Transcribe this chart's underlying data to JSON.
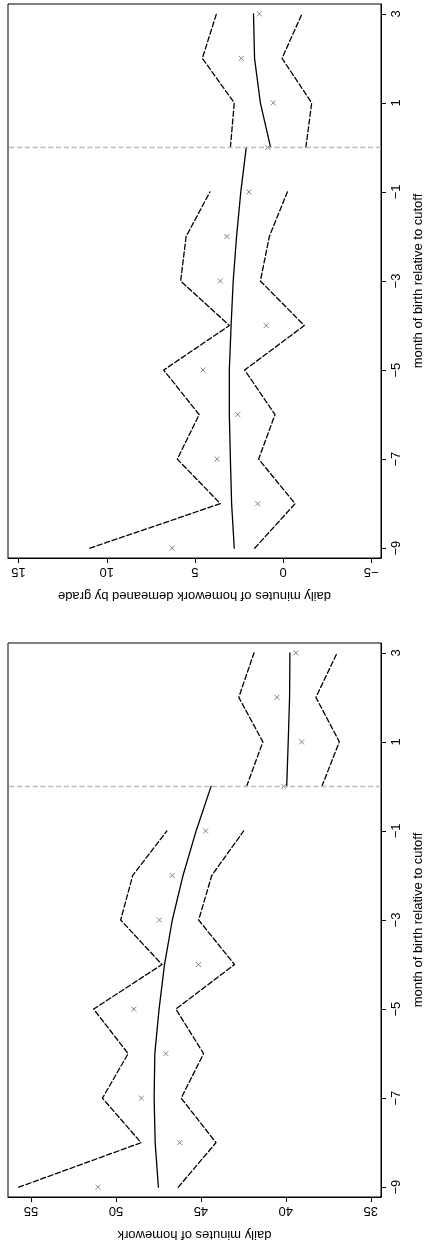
{
  "chart_data": [
    {
      "type": "line",
      "orientation": "horizontal",
      "ylabel": "month of birth relative to cutoff",
      "xlabel": "daily minutes of homework demeaned by grade",
      "ylim": [
        -9.22,
        3.22
      ],
      "xlim": [
        15.6,
        -5.55
      ],
      "yticks": [
        {
          "value": -9,
          "label": "−9"
        },
        {
          "value": -7,
          "label": "−7"
        },
        {
          "value": -5,
          "label": "−5"
        },
        {
          "value": -3,
          "label": "−3"
        },
        {
          "value": -1,
          "label": "−1"
        },
        {
          "value": 1,
          "label": "1"
        },
        {
          "value": 3,
          "label": "3"
        }
      ],
      "xticks": [
        {
          "value": -5,
          "label": "−5"
        },
        0,
        5,
        10,
        15
      ],
      "grid": false,
      "ref_lines": [
        {
          "axis": "y",
          "value": 0,
          "color": "#bbbbbb",
          "line_style": "dashed"
        }
      ],
      "series": [
        {
          "type": "scatter",
          "marker": "cross",
          "color": "#666666",
          "x": [
            -9,
            -8,
            -7,
            -6,
            -5,
            -4,
            -3,
            -2,
            -1,
            0,
            1,
            2,
            3
          ],
          "values": [
            6.29,
            1.44,
            3.75,
            2.57,
            4.54,
            0.96,
            3.56,
            3.19,
            1.94,
            0.87,
            0.56,
            2.37,
            1.35
          ]
        },
        {
          "line_style": "solid",
          "color": "#000000",
          "x": [
            -9,
            -8,
            -7,
            -6,
            -5,
            -4,
            -3,
            -2,
            -1,
            0
          ],
          "values": [
            2.77,
            2.92,
            2.99,
            3.05,
            3.05,
            2.95,
            2.83,
            2.64,
            2.4,
            2.09
          ]
        },
        {
          "line_style": "solid",
          "color": "#000000",
          "x": [
            0,
            1,
            2,
            3
          ],
          "values": [
            0.71,
            1.29,
            1.62,
            1.68
          ]
        },
        {
          "line_style": "dashed",
          "color": "#000000",
          "x": [
            -9,
            -8,
            -7,
            -6,
            -5,
            -4,
            -3,
            -2,
            -1
          ],
          "values": [
            10.96,
            3.56,
            6.0,
            4.76,
            6.77,
            3.05,
            5.81,
            5.5,
            4.15
          ]
        },
        {
          "line_style": "dashed",
          "color": "#000000",
          "x": [
            -9,
            -8,
            -7,
            -6,
            -5,
            -4,
            -3,
            -2,
            -1
          ],
          "values": [
            1.61,
            -0.68,
            1.39,
            0.46,
            2.18,
            -1.2,
            1.29,
            0.78,
            -0.24
          ]
        },
        {
          "line_style": "dashed",
          "color": "#000000",
          "x": [
            0,
            1,
            2,
            3
          ],
          "values": [
            2.99,
            2.77,
            4.58,
            3.78
          ]
        },
        {
          "line_style": "dashed",
          "color": "#000000",
          "x": [
            0,
            1,
            2,
            3
          ],
          "values": [
            -1.29,
            -1.62,
            0.06,
            -1.07
          ]
        }
      ]
    },
    {
      "type": "line",
      "orientation": "horizontal",
      "ylabel": "month of birth relative to cutoff",
      "xlabel": "daily minutes of homework",
      "ylim": [
        -9.22,
        3.22
      ],
      "xlim": [
        56.35,
        34.4
      ],
      "yticks": [
        {
          "value": -9,
          "label": "−9"
        },
        {
          "value": -7,
          "label": "−7"
        },
        {
          "value": -5,
          "label": "−5"
        },
        {
          "value": -3,
          "label": "−3"
        },
        {
          "value": -1,
          "label": "−1"
        },
        {
          "value": 1,
          "label": "1"
        },
        {
          "value": 3,
          "label": "3"
        }
      ],
      "xticks": [
        35,
        40,
        45,
        50,
        55
      ],
      "grid": false,
      "ref_lines": [
        {
          "axis": "y",
          "value": 0,
          "color": "#bbbbbb",
          "line_style": "dashed"
        }
      ],
      "series": [
        {
          "type": "scatter",
          "marker": "cross",
          "color": "#666666",
          "x": [
            -9,
            -8,
            -7,
            -6,
            -5,
            -4,
            -3,
            -2,
            -1,
            0,
            1,
            2,
            3
          ],
          "values": [
            51.05,
            46.25,
            48.5,
            47.06,
            48.94,
            45.14,
            47.44,
            46.68,
            44.72,
            40.12,
            39.07,
            40.53,
            39.41
          ]
        },
        {
          "line_style": "solid",
          "color": "#000000",
          "x": [
            -9,
            -8,
            -7,
            -6,
            -5,
            -4,
            -3,
            -2,
            -1,
            0
          ],
          "values": [
            47.5,
            47.69,
            47.75,
            47.71,
            47.46,
            47.14,
            46.68,
            46.05,
            45.28,
            44.4
          ]
        },
        {
          "line_style": "solid",
          "color": "#000000",
          "x": [
            0,
            1,
            2,
            3
          ],
          "values": [
            39.95,
            39.86,
            39.78,
            39.76
          ]
        },
        {
          "line_style": "dashed",
          "color": "#000000",
          "x": [
            -9,
            -8,
            -7,
            -6,
            -5,
            -4,
            -3,
            -2,
            -1
          ],
          "values": [
            55.72,
            48.52,
            50.79,
            49.28,
            51.31,
            47.29,
            49.72,
            49.01,
            47.0
          ]
        },
        {
          "line_style": "dashed",
          "color": "#000000",
          "x": [
            -9,
            -8,
            -7,
            -6,
            -5,
            -4,
            -3,
            -2,
            -1
          ],
          "values": [
            46.33,
            44.11,
            46.16,
            44.84,
            46.47,
            43.02,
            45.13,
            44.36,
            42.48
          ]
        },
        {
          "line_style": "dashed",
          "color": "#000000",
          "x": [
            0,
            1,
            2,
            3
          ],
          "values": [
            42.31,
            41.35,
            42.77,
            41.87
          ]
        },
        {
          "line_style": "dashed",
          "color": "#000000",
          "x": [
            0,
            1,
            2,
            3
          ],
          "values": [
            37.88,
            36.85,
            38.23,
            36.98
          ]
        }
      ]
    }
  ]
}
